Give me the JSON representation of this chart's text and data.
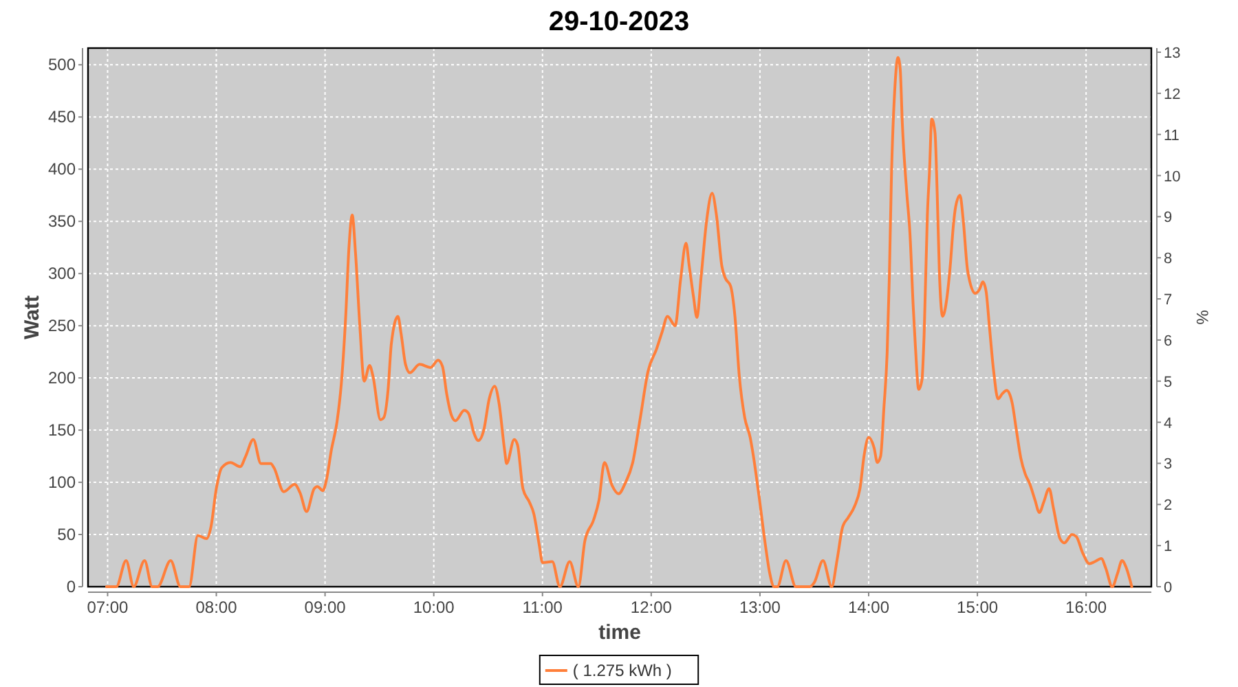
{
  "chart_data": {
    "type": "line",
    "title": "29-10-2023",
    "xlabel": "time",
    "ylabel": "Watt",
    "y2label": "%",
    "xlim": [
      6.82,
      16.6
    ],
    "xticks": [
      {
        "value": 7,
        "label": "07:00"
      },
      {
        "value": 8,
        "label": "08:00"
      },
      {
        "value": 9,
        "label": "09:00"
      },
      {
        "value": 10,
        "label": "10:00"
      },
      {
        "value": 11,
        "label": "11:00"
      },
      {
        "value": 12,
        "label": "12:00"
      },
      {
        "value": 13,
        "label": "13:00"
      },
      {
        "value": 14,
        "label": "14:00"
      },
      {
        "value": 15,
        "label": "15:00"
      },
      {
        "value": 16,
        "label": "16:00"
      }
    ],
    "ylim": [
      0,
      516
    ],
    "yticks": [
      0,
      50,
      100,
      150,
      200,
      250,
      300,
      350,
      400,
      450,
      500
    ],
    "y2lim": [
      0,
      13.1
    ],
    "y2ticks": [
      0,
      1,
      2,
      3,
      4,
      5,
      6,
      7,
      8,
      9,
      10,
      11,
      12,
      13
    ],
    "grid": true,
    "legend": "bottom",
    "x": [
      6.99,
      7.08,
      7.17,
      7.24,
      7.34,
      7.41,
      7.46,
      7.58,
      7.67,
      7.75,
      7.83,
      7.91,
      7.95,
      8.0,
      8.05,
      8.13,
      8.22,
      8.27,
      8.34,
      8.41,
      8.5,
      8.53,
      8.62,
      8.72,
      8.77,
      8.83,
      8.9,
      8.93,
      8.98,
      9.01,
      9.06,
      9.11,
      9.15,
      9.19,
      9.22,
      9.25,
      9.28,
      9.32,
      9.36,
      9.41,
      9.44,
      9.51,
      9.54,
      9.58,
      9.61,
      9.67,
      9.7,
      9.74,
      9.78,
      9.87,
      9.97,
      10.04,
      10.08,
      10.12,
      10.16,
      10.2,
      10.28,
      10.32,
      10.37,
      10.41,
      10.46,
      10.51,
      10.56,
      10.6,
      10.65,
      10.67,
      10.74,
      10.77,
      10.82,
      10.88,
      10.92,
      10.97,
      11.0,
      11.09,
      11.16,
      11.25,
      11.33,
      11.39,
      11.47,
      11.52,
      11.57,
      11.64,
      11.7,
      11.76,
      11.83,
      11.9,
      11.97,
      12.05,
      12.1,
      12.15,
      12.22,
      12.27,
      12.32,
      12.35,
      12.39,
      12.42,
      12.46,
      12.51,
      12.56,
      12.6,
      12.65,
      12.68,
      12.73,
      12.77,
      12.81,
      12.86,
      12.91,
      12.94,
      12.99,
      13.05,
      13.09,
      13.13,
      13.16,
      13.24,
      13.33,
      13.46,
      13.5,
      13.58,
      13.66,
      13.71,
      13.76,
      13.81,
      13.87,
      13.92,
      13.96,
      14.0,
      14.05,
      14.08,
      14.11,
      14.14,
      14.17,
      14.19,
      14.21,
      14.24,
      14.27,
      14.29,
      14.31,
      14.35,
      14.38,
      14.41,
      14.43,
      14.46,
      14.49,
      14.51,
      14.54,
      14.56,
      14.58,
      14.61,
      14.63,
      14.65,
      14.68,
      14.72,
      14.75,
      14.78,
      14.8,
      14.84,
      14.87,
      14.91,
      14.98,
      15.02,
      15.05,
      15.08,
      15.11,
      15.15,
      15.19,
      15.23,
      15.27,
      15.32,
      15.36,
      15.4,
      15.44,
      15.48,
      15.53,
      15.57,
      15.61,
      15.66,
      15.7,
      15.76,
      15.8,
      15.87,
      15.91,
      15.97,
      16.03,
      16.08,
      16.14,
      16.18,
      16.24,
      16.29,
      16.33,
      16.37,
      16.42
    ],
    "series": [
      {
        "name": "( 1.275 kWh )",
        "color": "#ff7f3a",
        "values": [
          0,
          0,
          25,
          0,
          25,
          0,
          0,
          25,
          0,
          0,
          49,
          46,
          57,
          94,
          114,
          119,
          115,
          125,
          141,
          118,
          118,
          114,
          91,
          98,
          90,
          72,
          94,
          96,
          92,
          101,
          132,
          158,
          195,
          259,
          325,
          356,
          320,
          250,
          197,
          212,
          202,
          160,
          162,
          189,
          233,
          259,
          242,
          213,
          205,
          213,
          210,
          217,
          211,
          184,
          165,
          159,
          169,
          166,
          147,
          140,
          150,
          180,
          192,
          176,
          132,
          118,
          141,
          136,
          94,
          81,
          70,
          40,
          23,
          24,
          0,
          24,
          0,
          44,
          64,
          83,
          119,
          97,
          89,
          99,
          119,
          162,
          206,
          228,
          244,
          259,
          250,
          294,
          329,
          307,
          277,
          258,
          298,
          351,
          377,
          356,
          307,
          296,
          288,
          259,
          202,
          162,
          143,
          125,
          88,
          40,
          13,
          0,
          0,
          25,
          0,
          0,
          4,
          25,
          0,
          26,
          57,
          66,
          77,
          94,
          127,
          143,
          133,
          119,
          125,
          171,
          224,
          296,
          395,
          476,
          507,
          496,
          443,
          378,
          338,
          268,
          230,
          189,
          198,
          241,
          356,
          399,
          448,
          435,
          378,
          303,
          259,
          277,
          307,
          347,
          364,
          375,
          351,
          303,
          281,
          285,
          292,
          283,
          250,
          206,
          180,
          185,
          188,
          176,
          149,
          123,
          108,
          99,
          83,
          71,
          81,
          94,
          75,
          46,
          42,
          50,
          48,
          32,
          22,
          24,
          27,
          18,
          0,
          13,
          25,
          18,
          0
        ]
      }
    ]
  }
}
